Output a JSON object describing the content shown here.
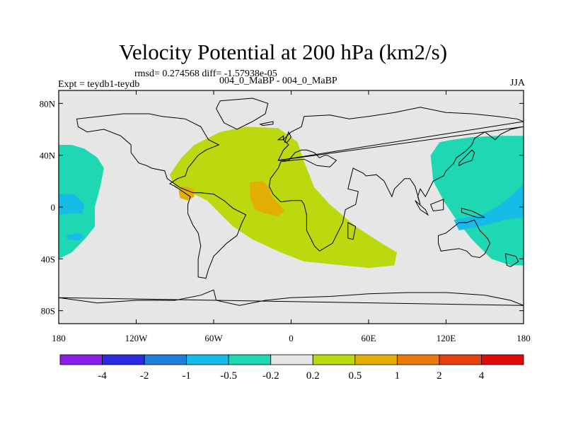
{
  "header": {
    "title": "Velocity Potential at 200 hPa (km2/s)",
    "stats": "rmsd= 0.274568 diff= -1.57938e-05",
    "experiment": "Expt = teydb1-teydb",
    "period": "004_0_MaBP - 004_0_MaBP",
    "season": "JJA"
  },
  "chart_data": {
    "type": "contour-map",
    "title": "Velocity Potential at 200 hPa (km2/s)",
    "projection": "cylindrical-equidistant",
    "xlim": [
      -180,
      180
    ],
    "ylim": [
      -90,
      90
    ],
    "x_ticks": [
      {
        "value": -180,
        "label": "180"
      },
      {
        "value": -120,
        "label": "120W"
      },
      {
        "value": -60,
        "label": "60W"
      },
      {
        "value": 0,
        "label": "0"
      },
      {
        "value": 60,
        "label": "60E"
      },
      {
        "value": 120,
        "label": "120E"
      },
      {
        "value": 180,
        "label": "180"
      }
    ],
    "y_ticks": [
      {
        "value": 80,
        "label": "80N"
      },
      {
        "value": 40,
        "label": "40N"
      },
      {
        "value": 0,
        "label": "0"
      },
      {
        "value": -40,
        "label": "40S"
      },
      {
        "value": -80,
        "label": "80S"
      }
    ],
    "colorbar": {
      "levels": [
        "-4",
        "-2",
        "-1",
        "-0.5",
        "-0.2",
        "0.2",
        "0.5",
        "1",
        "2",
        "4"
      ],
      "colors": [
        "#8a1ee6",
        "#2a2ae0",
        "#1f7fd8",
        "#16bbe6",
        "#1ed8b4",
        "#e6e6e6",
        "#bcd80e",
        "#e2ae06",
        "#ea7a10",
        "#e6400c",
        "#e00a0a"
      ]
    },
    "regions": [
      {
        "name": "velocity-potential-positive-0.2-0.5-africa-eurasia",
        "level": "0.2 to 0.5",
        "color": "#bcd80e",
        "lonlat": [
          [
            -94,
            25
          ],
          [
            -85,
            38
          ],
          [
            -75,
            48
          ],
          [
            -55,
            58
          ],
          [
            -35,
            62
          ],
          [
            -10,
            61
          ],
          [
            5,
            50
          ],
          [
            10,
            35
          ],
          [
            18,
            15
          ],
          [
            30,
            2
          ],
          [
            50,
            -15
          ],
          [
            70,
            -28
          ],
          [
            82,
            -35
          ],
          [
            80,
            -45
          ],
          [
            60,
            -47
          ],
          [
            40,
            -45
          ],
          [
            10,
            -42
          ],
          [
            -8,
            -35
          ],
          [
            -30,
            -25
          ],
          [
            -45,
            -15
          ],
          [
            -55,
            -5
          ],
          [
            -65,
            5
          ],
          [
            -75,
            10
          ],
          [
            -90,
            15
          ]
        ]
      },
      {
        "name": "velocity-potential-0.5-1-africa",
        "level": "0.5 to 1",
        "color": "#e2ae06",
        "lonlat": [
          [
            -32,
            19
          ],
          [
            -22,
            20
          ],
          [
            -17,
            15
          ],
          [
            -15,
            8
          ],
          [
            -10,
            3
          ],
          [
            -5,
            -3
          ],
          [
            -10,
            -7
          ],
          [
            -20,
            -5
          ],
          [
            -28,
            -2
          ],
          [
            -32,
            8
          ]
        ]
      },
      {
        "name": "velocity-potential-0.5-1-central-america",
        "level": "0.5 to 1",
        "color": "#e2ae06",
        "lonlat": [
          [
            -85,
            16
          ],
          [
            -78,
            15
          ],
          [
            -75,
            13
          ],
          [
            -75,
            8
          ],
          [
            -80,
            5
          ],
          [
            -86,
            7
          ],
          [
            -87,
            12
          ]
        ]
      },
      {
        "name": "velocity-potential-negative-0.2-0.5-east-pacific",
        "level": "-0.5 to -0.2",
        "color": "#1ed8b4",
        "lonlat": [
          [
            -180,
            48
          ],
          [
            -170,
            48
          ],
          [
            -160,
            45
          ],
          [
            -150,
            38
          ],
          [
            -145,
            30
          ],
          [
            -148,
            15
          ],
          [
            -152,
            0
          ],
          [
            -152,
            -15
          ],
          [
            -160,
            -25
          ],
          [
            -170,
            -35
          ],
          [
            -180,
            -40
          ]
        ]
      },
      {
        "name": "velocity-potential-negative-0.5-1-east-pacific",
        "level": "-1 to -0.5",
        "color": "#16bbe6",
        "lonlat": [
          [
            -180,
            10
          ],
          [
            -168,
            10
          ],
          [
            -160,
            2
          ],
          [
            -162,
            -5
          ],
          [
            -172,
            -5
          ],
          [
            -180,
            -6
          ]
        ]
      },
      {
        "name": "velocity-potential-negative-0.5-1-east-pacific-small",
        "level": "-1 to -0.5",
        "color": "#16bbe6",
        "lonlat": [
          [
            -175,
            -22
          ],
          [
            -165,
            -20
          ],
          [
            -160,
            -23
          ],
          [
            -165,
            -26
          ],
          [
            -173,
            -25
          ]
        ]
      },
      {
        "name": "velocity-potential-negative-0.2-0.5-west-pacific",
        "level": "-0.5 to -0.2",
        "color": "#1ed8b4",
        "lonlat": [
          [
            180,
            55
          ],
          [
            160,
            55
          ],
          [
            140,
            54
          ],
          [
            125,
            52
          ],
          [
            115,
            50
          ],
          [
            108,
            40
          ],
          [
            110,
            20
          ],
          [
            118,
            5
          ],
          [
            128,
            -10
          ],
          [
            140,
            -25
          ],
          [
            155,
            -40
          ],
          [
            170,
            -45
          ],
          [
            180,
            -45
          ]
        ]
      },
      {
        "name": "velocity-potential-negative-0.5-1-west-pacific",
        "level": "-1 to -0.5",
        "color": "#16bbe6",
        "lonlat": [
          [
            180,
            18
          ],
          [
            172,
            10
          ],
          [
            162,
            2
          ],
          [
            150,
            -5
          ],
          [
            135,
            -8
          ],
          [
            126,
            -10
          ],
          [
            130,
            -18
          ],
          [
            150,
            -14
          ],
          [
            165,
            -10
          ],
          [
            180,
            -8
          ]
        ]
      }
    ],
    "coastline_lonlat": [
      [
        [
          -130,
          72
        ],
        [
          -110,
          72
        ],
        [
          -100,
          70
        ],
        [
          -82,
          68
        ],
        [
          -70,
          62
        ],
        [
          -64,
          52
        ],
        [
          -56,
          48
        ],
        [
          -66,
          44
        ],
        [
          -72,
          40
        ],
        [
          -76,
          35
        ],
        [
          -80,
          30
        ],
        [
          -82,
          24
        ],
        [
          -88,
          22
        ],
        [
          -94,
          18
        ],
        [
          -90,
          16
        ],
        [
          -84,
          12
        ],
        [
          -78,
          8
        ],
        [
          -80,
          2
        ],
        [
          -80,
          -5
        ],
        [
          -76,
          -14
        ],
        [
          -72,
          -20
        ],
        [
          -70,
          -30
        ],
        [
          -72,
          -40
        ],
        [
          -72,
          -54
        ],
        [
          -66,
          -55
        ],
        [
          -64,
          -48
        ],
        [
          -60,
          -38
        ],
        [
          -50,
          -28
        ],
        [
          -42,
          -22
        ],
        [
          -38,
          -12
        ],
        [
          -35,
          -6
        ],
        [
          -45,
          -1
        ],
        [
          -52,
          5
        ],
        [
          -60,
          10
        ],
        [
          -70,
          11
        ],
        [
          -76,
          11
        ],
        [
          -86,
          15
        ],
        [
          -96,
          22
        ],
        [
          -98,
          28
        ],
        [
          -108,
          30
        ],
        [
          -112,
          32
        ],
        [
          -118,
          34
        ],
        [
          -124,
          42
        ],
        [
          -124,
          48
        ],
        [
          -132,
          55
        ],
        [
          -145,
          60
        ],
        [
          -158,
          58
        ],
        [
          -165,
          62
        ],
        [
          -166,
          68
        ]
      ],
      [
        [
          -55,
          82
        ],
        [
          -30,
          84
        ],
        [
          -18,
          80
        ],
        [
          -20,
          72
        ],
        [
          -30,
          66
        ],
        [
          -42,
          60
        ],
        [
          -52,
          65
        ],
        [
          -58,
          76
        ]
      ],
      [
        [
          -10,
          36
        ],
        [
          -6,
          44
        ],
        [
          -2,
          48
        ],
        [
          -6,
          52
        ],
        [
          0,
          58
        ],
        [
          8,
          62
        ],
        [
          10,
          70
        ],
        [
          30,
          71
        ],
        [
          45,
          68
        ],
        [
          60,
          70
        ],
        [
          80,
          73
        ],
        [
          100,
          77
        ],
        [
          120,
          73
        ],
        [
          140,
          72
        ],
        [
          160,
          70
        ],
        [
          175,
          68
        ],
        [
          180,
          66
        ]
      ],
      [
        [
          180,
          62
        ],
        [
          170,
          60
        ],
        [
          162,
          56
        ],
        [
          158,
          52
        ],
        [
          150,
          58
        ],
        [
          142,
          53
        ],
        [
          140,
          48
        ],
        [
          135,
          43
        ],
        [
          128,
          38
        ],
        [
          126,
          34
        ],
        [
          120,
          28
        ],
        [
          118,
          24
        ],
        [
          110,
          20
        ],
        [
          106,
          12
        ],
        [
          104,
          8
        ],
        [
          100,
          14
        ],
        [
          98,
          8
        ],
        [
          100,
          2
        ],
        [
          96,
          16
        ],
        [
          92,
          22
        ],
        [
          88,
          22
        ],
        [
          80,
          14
        ],
        [
          78,
          8
        ],
        [
          72,
          20
        ],
        [
          66,
          25
        ],
        [
          58,
          24
        ],
        [
          56,
          26
        ],
        [
          48,
          30
        ],
        [
          44,
          14
        ],
        [
          52,
          12
        ],
        [
          50,
          2
        ],
        [
          42,
          -2
        ],
        [
          40,
          -12
        ],
        [
          36,
          -20
        ],
        [
          32,
          -28
        ],
        [
          22,
          -34
        ],
        [
          18,
          -30
        ],
        [
          12,
          -18
        ],
        [
          12,
          -6
        ],
        [
          10,
          2
        ],
        [
          8,
          5
        ],
        [
          0,
          5
        ],
        [
          -8,
          4
        ],
        [
          -14,
          10
        ],
        [
          -17,
          16
        ],
        [
          -16,
          22
        ],
        [
          -10,
          30
        ],
        [
          -8,
          35
        ],
        [
          0,
          36
        ],
        [
          10,
          37
        ],
        [
          20,
          32
        ],
        [
          30,
          31
        ],
        [
          35,
          36
        ],
        [
          28,
          40
        ],
        [
          26,
          40
        ],
        [
          22,
          38
        ],
        [
          18,
          42
        ],
        [
          12,
          44
        ],
        [
          8,
          44
        ],
        [
          3,
          42
        ],
        [
          -2,
          36
        ],
        [
          -10,
          36
        ]
      ],
      [
        [
          44,
          -12
        ],
        [
          50,
          -15
        ],
        [
          48,
          -25
        ],
        [
          44,
          -24
        ]
      ],
      [
        [
          114,
          -22
        ],
        [
          120,
          -20
        ],
        [
          130,
          -12
        ],
        [
          136,
          -12
        ],
        [
          142,
          -10
        ],
        [
          146,
          -18
        ],
        [
          152,
          -24
        ],
        [
          154,
          -28
        ],
        [
          150,
          -36
        ],
        [
          146,
          -39
        ],
        [
          140,
          -38
        ],
        [
          136,
          -34
        ],
        [
          130,
          -32
        ],
        [
          116,
          -34
        ],
        [
          114,
          -28
        ]
      ],
      [
        [
          130,
          32
        ],
        [
          134,
          34
        ],
        [
          140,
          36
        ],
        [
          142,
          42
        ],
        [
          140,
          44
        ],
        [
          134,
          38
        ],
        [
          130,
          34
        ]
      ],
      [
        [
          96,
          5
        ],
        [
          104,
          -2
        ],
        [
          106,
          -6
        ],
        [
          100,
          -2
        ]
      ],
      [
        [
          108,
          2
        ],
        [
          118,
          6
        ],
        [
          118,
          -2
        ],
        [
          110,
          -3
        ]
      ],
      [
        [
          132,
          -1
        ],
        [
          140,
          -3
        ],
        [
          150,
          -8
        ],
        [
          144,
          -8
        ],
        [
          132,
          -4
        ]
      ],
      [
        [
          166,
          -36
        ],
        [
          174,
          -38
        ],
        [
          176,
          -42
        ],
        [
          170,
          -46
        ],
        [
          167,
          -45
        ]
      ],
      [
        [
          -180,
          -70
        ],
        [
          -150,
          -74
        ],
        [
          -120,
          -72
        ],
        [
          -90,
          -72
        ],
        [
          -70,
          -68
        ],
        [
          -60,
          -64
        ],
        [
          -58,
          -72
        ],
        [
          -40,
          -76
        ],
        [
          -20,
          -72
        ],
        [
          0,
          -70
        ],
        [
          30,
          -69
        ],
        [
          60,
          -67
        ],
        [
          90,
          -66
        ],
        [
          120,
          -66
        ],
        [
          150,
          -68
        ],
        [
          170,
          -72
        ],
        [
          180,
          -76
        ]
      ],
      [
        [
          -5,
          50
        ],
        [
          -2,
          58
        ],
        [
          0,
          54
        ],
        [
          -3,
          50
        ]
      ],
      [
        [
          -10,
          52
        ],
        [
          -6,
          55
        ],
        [
          -6,
          52
        ]
      ],
      [
        [
          -24,
          64
        ],
        [
          -14,
          66
        ],
        [
          -14,
          64
        ],
        [
          -22,
          63
        ]
      ]
    ]
  }
}
